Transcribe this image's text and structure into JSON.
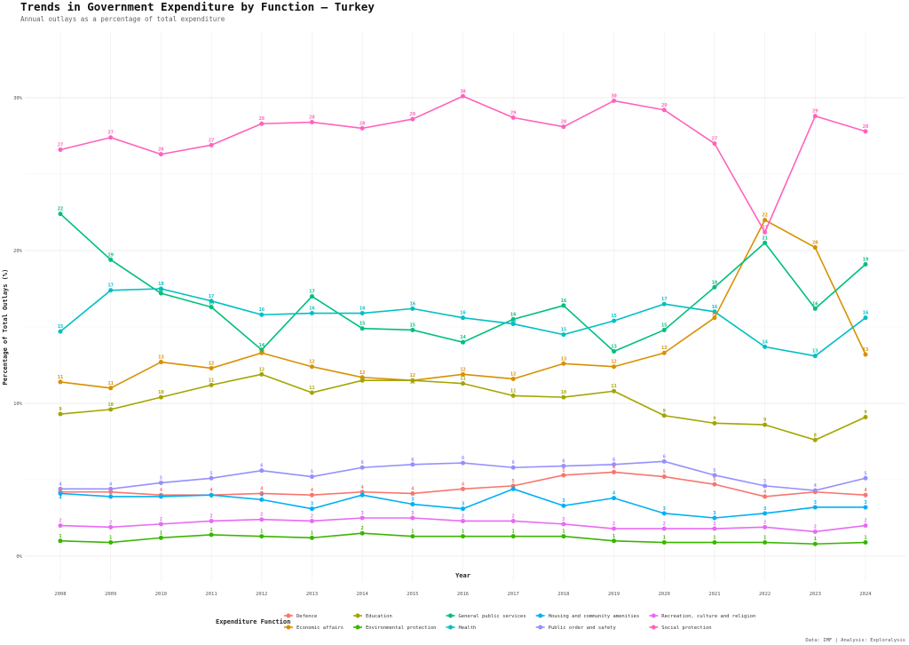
{
  "chart_data": {
    "type": "line",
    "title": "Trends in Government Expenditure by Function — Turkey",
    "subtitle": "Annual outlays as a percentage of total expenditure",
    "xlabel": "Year",
    "ylabel": "Percentage of Total Outlays (%)",
    "ylim": [
      -1.7,
      34.4
    ],
    "yticks": [
      0,
      10,
      20,
      30
    ],
    "ytick_labels": [
      "0%",
      "10%",
      "20%",
      "30%"
    ],
    "grid": true,
    "legend_title": "Expenditure Function",
    "legend_position": "bottom",
    "caption": "Data: IMF | Analysis: Exploralysis",
    "x": [
      2008,
      2009,
      2010,
      2011,
      2012,
      2013,
      2014,
      2015,
      2016,
      2017,
      2018,
      2019,
      2020,
      2021,
      2022,
      2023,
      2024
    ],
    "series": [
      {
        "name": "Defence",
        "color": "#F8766D",
        "values": [
          4.2,
          4.2,
          4.0,
          4.0,
          4.1,
          4.0,
          4.2,
          4.1,
          4.4,
          4.6,
          5.3,
          5.5,
          5.2,
          4.7,
          3.9,
          4.2,
          4.0
        ]
      },
      {
        "name": "Economic affairs",
        "color": "#D89000",
        "values": [
          11.4,
          11.0,
          12.7,
          12.3,
          13.3,
          12.4,
          11.7,
          11.5,
          11.9,
          11.6,
          12.6,
          12.4,
          13.3,
          15.6,
          22.0,
          20.2,
          13.2
        ]
      },
      {
        "name": "Education",
        "color": "#A3A500",
        "values": [
          9.3,
          9.6,
          10.4,
          11.2,
          11.9,
          10.7,
          11.5,
          11.5,
          11.3,
          10.5,
          10.4,
          10.8,
          9.2,
          8.7,
          8.6,
          7.6,
          9.1
        ]
      },
      {
        "name": "Environmental protection",
        "color": "#39B600",
        "values": [
          1.0,
          0.9,
          1.2,
          1.4,
          1.3,
          1.2,
          1.5,
          1.3,
          1.3,
          1.3,
          1.3,
          1.0,
          0.9,
          0.9,
          0.9,
          0.8,
          0.9
        ]
      },
      {
        "name": "General public services",
        "color": "#00BF7D",
        "values": [
          22.4,
          19.4,
          17.2,
          16.3,
          13.5,
          17.0,
          14.9,
          14.8,
          14.0,
          15.5,
          16.4,
          13.4,
          14.8,
          17.6,
          20.5,
          16.2,
          19.1
        ]
      },
      {
        "name": "Health",
        "color": "#00BFC4",
        "values": [
          14.7,
          17.4,
          17.5,
          16.7,
          15.8,
          15.9,
          15.9,
          16.2,
          15.6,
          15.2,
          14.5,
          15.4,
          16.5,
          16.0,
          13.7,
          13.1,
          15.6
        ]
      },
      {
        "name": "Housing and community amenities",
        "color": "#00B0F6",
        "values": [
          4.1,
          3.9,
          3.9,
          4.0,
          3.7,
          3.1,
          4.0,
          3.4,
          3.1,
          4.4,
          3.3,
          3.8,
          2.8,
          2.5,
          2.8,
          3.2,
          3.2
        ]
      },
      {
        "name": "Public order and safety",
        "color": "#9590FF",
        "values": [
          4.4,
          4.4,
          4.8,
          5.1,
          5.6,
          5.2,
          5.8,
          6.0,
          6.1,
          5.8,
          5.9,
          6.0,
          6.2,
          5.3,
          4.6,
          4.3,
          5.1
        ]
      },
      {
        "name": "Recreation, culture and religion",
        "color": "#E76BF3",
        "values": [
          2.0,
          1.9,
          2.1,
          2.3,
          2.4,
          2.3,
          2.5,
          2.5,
          2.3,
          2.3,
          2.1,
          1.8,
          1.8,
          1.8,
          1.9,
          1.6,
          2.0
        ]
      },
      {
        "name": "Social protection",
        "color": "#FF62BC",
        "values": [
          26.6,
          27.4,
          26.3,
          26.9,
          28.3,
          28.4,
          28.0,
          28.6,
          30.1,
          28.7,
          28.1,
          29.8,
          29.2,
          27.0,
          21.2,
          28.8,
          27.8
        ]
      }
    ]
  }
}
